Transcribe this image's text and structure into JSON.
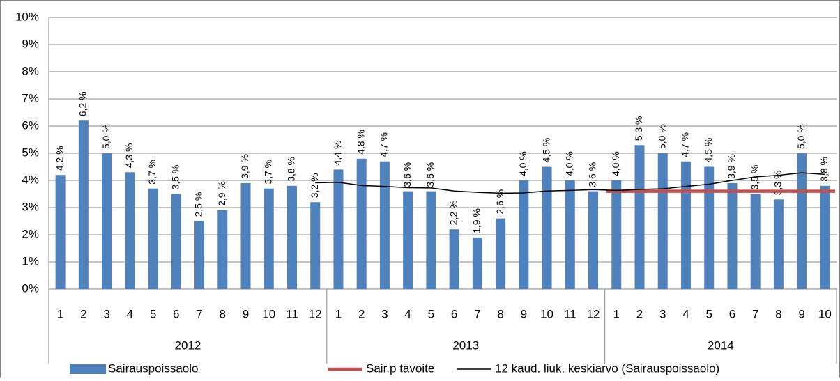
{
  "chart_data": {
    "type": "bar",
    "category_groups": [
      {
        "label": "2012",
        "categories": [
          "1",
          "2",
          "3",
          "4",
          "5",
          "6",
          "7",
          "8",
          "9",
          "10",
          "11",
          "12"
        ]
      },
      {
        "label": "2013",
        "categories": [
          "1",
          "2",
          "3",
          "4",
          "5",
          "6",
          "7",
          "8",
          "9",
          "10",
          "11",
          "12"
        ]
      },
      {
        "label": "2014",
        "categories": [
          "1",
          "2",
          "3",
          "4",
          "5",
          "6",
          "7",
          "8",
          "9",
          "10"
        ]
      }
    ],
    "series": [
      {
        "name": "Sairauspoissaolo",
        "type": "bar",
        "color": "#4f81bd",
        "values": [
          4.2,
          6.2,
          5.0,
          4.3,
          3.7,
          3.5,
          2.5,
          2.9,
          3.9,
          3.7,
          3.8,
          3.2,
          4.4,
          4.8,
          4.7,
          3.6,
          3.6,
          2.2,
          1.9,
          2.6,
          4.0,
          4.5,
          4.0,
          3.6,
          4.0,
          5.3,
          5.0,
          4.7,
          4.5,
          3.9,
          3.5,
          3.3,
          5.0,
          3.8
        ],
        "value_labels": [
          "4,2 %",
          "6,2 %",
          "5,0 %",
          "4,3 %",
          "3,7 %",
          "3,5 %",
          "2,5 %",
          "2,9 %",
          "3,9 %",
          "3,7 %",
          "3,8 %",
          "3,2 %",
          "4,4 %",
          "4,8 %",
          "4,7 %",
          "3,6 %",
          "3,6 %",
          "2,2 %",
          "1,9 %",
          "2,6 %",
          "4,0 %",
          "4,5 %",
          "4,0 %",
          "3,6 %",
          "4,0 %",
          "5,3 %",
          "5,0 %",
          "4,7 %",
          "4,5 %",
          "3,9 %",
          "3,5 %",
          "3,3 %",
          "5,0 %",
          "3,8 %"
        ]
      },
      {
        "name": "Sair.p tavoite",
        "type": "line",
        "color": "#c0504d",
        "values": [
          null,
          null,
          null,
          null,
          null,
          null,
          null,
          null,
          null,
          null,
          null,
          null,
          null,
          null,
          null,
          null,
          null,
          null,
          null,
          null,
          null,
          null,
          null,
          null,
          3.6,
          3.6,
          3.6,
          3.6,
          3.6,
          3.6,
          3.6,
          3.6,
          3.6,
          3.6
        ]
      },
      {
        "name": "12 kaud. liuk. keskiarvo (Sairauspoissaolo)",
        "type": "line",
        "color": "#000000",
        "values": [
          null,
          null,
          null,
          null,
          null,
          null,
          null,
          null,
          null,
          null,
          null,
          3.91,
          3.93,
          3.81,
          3.78,
          3.73,
          3.72,
          3.61,
          3.56,
          3.53,
          3.54,
          3.61,
          3.63,
          3.66,
          3.63,
          3.67,
          3.69,
          3.78,
          3.86,
          4.0,
          4.13,
          4.19,
          4.28,
          4.22
        ]
      }
    ],
    "ylim": [
      0,
      10
    ],
    "yticks": [
      {
        "value": 0,
        "label": "0%"
      },
      {
        "value": 1,
        "label": "1%"
      },
      {
        "value": 2,
        "label": "2%"
      },
      {
        "value": 3,
        "label": "3%"
      },
      {
        "value": 4,
        "label": "4%"
      },
      {
        "value": 5,
        "label": "5%"
      },
      {
        "value": 6,
        "label": "6%"
      },
      {
        "value": 7,
        "label": "7%"
      },
      {
        "value": 8,
        "label": "8%"
      },
      {
        "value": 9,
        "label": "9%"
      },
      {
        "value": 10,
        "label": "10%"
      }
    ],
    "grid": true
  }
}
